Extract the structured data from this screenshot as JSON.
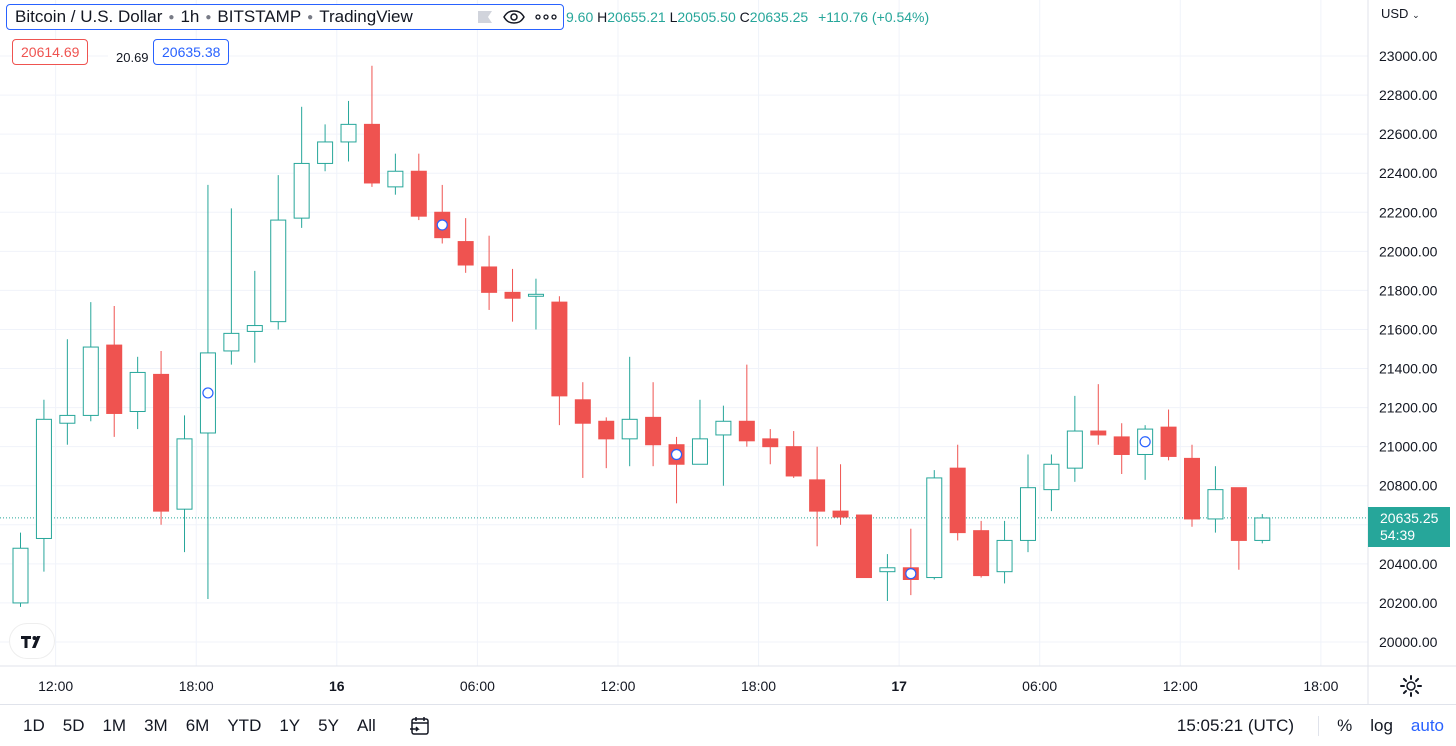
{
  "header": {
    "symbol": "Bitcoin / U.S. Dollar",
    "interval": "1h",
    "exchange": "BITSTAMP",
    "source": "TradingView",
    "ohlc": {
      "open_label": "",
      "open_value": "9.60",
      "high_label": "H",
      "high_value": "20655.21",
      "low_label": "L",
      "low_value": "20505.50",
      "close_label": "C",
      "close_value": "20635.25",
      "change": "+110.76 (+0.54%)"
    },
    "bid": "20614.69",
    "spread": "20.69",
    "ask": "20635.38",
    "currency": "USD"
  },
  "last_price": {
    "value": "20635.25",
    "countdown": "54:39"
  },
  "colors": {
    "up": "#26a69a",
    "down": "#ef5350",
    "grid": "#f0f3fa",
    "accent": "#2962ff"
  },
  "toolbar": {
    "ranges": [
      "1D",
      "5D",
      "1M",
      "3M",
      "6M",
      "YTD",
      "1Y",
      "5Y",
      "All"
    ],
    "clock": "15:05:21 (UTC)",
    "percent": "%",
    "log": "log",
    "auto": "auto"
  },
  "icons": [
    "eye-icon",
    "more-icon",
    "goto-date-icon",
    "settings-icon",
    "tradingview-logo"
  ],
  "chart_data": {
    "type": "candlestick",
    "ylim": [
      19925,
      23200
    ],
    "y_ticks": [
      20000,
      20200,
      20400,
      20600,
      20800,
      21000,
      21200,
      21400,
      21600,
      21800,
      22000,
      22200,
      22400,
      22600,
      22800,
      23000
    ],
    "y_tick_labels": [
      "20000.00",
      "20200.00",
      "20400.00",
      "20600.00",
      "20800.00",
      "21000.00",
      "21200.00",
      "21400.00",
      "21600.00",
      "21800.00",
      "22000.00",
      "22200.00",
      "22400.00",
      "22600.00",
      "22800.00",
      "23000.00"
    ],
    "x_tick_labels": [
      "12:00",
      "18:00",
      "16",
      "06:00",
      "12:00",
      "18:00",
      "17",
      "06:00",
      "12:00",
      "18:00"
    ],
    "x_tick_positions": [
      1.5,
      7.5,
      13.5,
      19.5,
      25.5,
      31.5,
      37.5,
      43.5,
      49.5,
      55.5
    ],
    "last_price": 20635.25,
    "candles": [
      {
        "o": 20200,
        "h": 20560,
        "l": 20180,
        "c": 20480
      },
      {
        "o": 20530,
        "h": 21240,
        "l": 20360,
        "c": 21140
      },
      {
        "o": 21120,
        "h": 21550,
        "l": 21010,
        "c": 21160
      },
      {
        "o": 21160,
        "h": 21740,
        "l": 21130,
        "c": 21510
      },
      {
        "o": 21520,
        "h": 21720,
        "l": 21050,
        "c": 21170
      },
      {
        "o": 21180,
        "h": 21460,
        "l": 21090,
        "c": 21380
      },
      {
        "o": 21370,
        "h": 21490,
        "l": 20600,
        "c": 20670
      },
      {
        "o": 20680,
        "h": 21160,
        "l": 20460,
        "c": 21040
      },
      {
        "o": 21070,
        "h": 22340,
        "l": 20220,
        "c": 21480
      },
      {
        "o": 21490,
        "h": 22220,
        "l": 21420,
        "c": 21580
      },
      {
        "o": 21590,
        "h": 21900,
        "l": 21430,
        "c": 21620
      },
      {
        "o": 21640,
        "h": 22390,
        "l": 21600,
        "c": 22160
      },
      {
        "o": 22170,
        "h": 22740,
        "l": 22120,
        "c": 22450
      },
      {
        "o": 22450,
        "h": 22650,
        "l": 22410,
        "c": 22560
      },
      {
        "o": 22560,
        "h": 22770,
        "l": 22460,
        "c": 22650
      },
      {
        "o": 22650,
        "h": 22950,
        "l": 22330,
        "c": 22350
      },
      {
        "o": 22330,
        "h": 22500,
        "l": 22290,
        "c": 22410
      },
      {
        "o": 22410,
        "h": 22500,
        "l": 22160,
        "c": 22180
      },
      {
        "o": 22200,
        "h": 22340,
        "l": 22040,
        "c": 22070
      },
      {
        "o": 22050,
        "h": 22170,
        "l": 21890,
        "c": 21930
      },
      {
        "o": 21920,
        "h": 22080,
        "l": 21700,
        "c": 21790
      },
      {
        "o": 21790,
        "h": 21910,
        "l": 21640,
        "c": 21760
      },
      {
        "o": 21770,
        "h": 21860,
        "l": 21600,
        "c": 21780
      },
      {
        "o": 21740,
        "h": 21770,
        "l": 21110,
        "c": 21260
      },
      {
        "o": 21240,
        "h": 21330,
        "l": 20840,
        "c": 21120
      },
      {
        "o": 21130,
        "h": 21150,
        "l": 20890,
        "c": 21040
      },
      {
        "o": 21040,
        "h": 21460,
        "l": 20900,
        "c": 21140
      },
      {
        "o": 21150,
        "h": 21330,
        "l": 20900,
        "c": 21010
      },
      {
        "o": 21010,
        "h": 21050,
        "l": 20710,
        "c": 20910
      },
      {
        "o": 20910,
        "h": 21240,
        "l": 20910,
        "c": 21040
      },
      {
        "o": 21060,
        "h": 21210,
        "l": 20800,
        "c": 21130
      },
      {
        "o": 21130,
        "h": 21420,
        "l": 21000,
        "c": 21030
      },
      {
        "o": 21040,
        "h": 21090,
        "l": 20910,
        "c": 21000
      },
      {
        "o": 21000,
        "h": 21080,
        "l": 20840,
        "c": 20850
      },
      {
        "o": 20830,
        "h": 21000,
        "l": 20490,
        "c": 20670
      },
      {
        "o": 20670,
        "h": 20910,
        "l": 20600,
        "c": 20640
      },
      {
        "o": 20650,
        "h": 20650,
        "l": 20330,
        "c": 20330
      },
      {
        "o": 20360,
        "h": 20450,
        "l": 20210,
        "c": 20380
      },
      {
        "o": 20380,
        "h": 20580,
        "l": 20240,
        "c": 20320
      },
      {
        "o": 20330,
        "h": 20880,
        "l": 20320,
        "c": 20840
      },
      {
        "o": 20890,
        "h": 21010,
        "l": 20520,
        "c": 20560
      },
      {
        "o": 20570,
        "h": 20620,
        "l": 20330,
        "c": 20340
      },
      {
        "o": 20360,
        "h": 20620,
        "l": 20300,
        "c": 20520
      },
      {
        "o": 20520,
        "h": 20960,
        "l": 20460,
        "c": 20790
      },
      {
        "o": 20780,
        "h": 20960,
        "l": 20670,
        "c": 20910
      },
      {
        "o": 20890,
        "h": 21260,
        "l": 20820,
        "c": 21080
      },
      {
        "o": 21080,
        "h": 21320,
        "l": 21010,
        "c": 21060
      },
      {
        "o": 21050,
        "h": 21120,
        "l": 20860,
        "c": 20960
      },
      {
        "o": 20960,
        "h": 21110,
        "l": 20830,
        "c": 21090
      },
      {
        "o": 21100,
        "h": 21190,
        "l": 20930,
        "c": 20950
      },
      {
        "o": 20940,
        "h": 21010,
        "l": 20590,
        "c": 20630
      },
      {
        "o": 20630,
        "h": 20900,
        "l": 20560,
        "c": 20780
      },
      {
        "o": 20790,
        "h": 20790,
        "l": 20370,
        "c": 20520
      },
      {
        "o": 20520,
        "h": 20655,
        "l": 20505,
        "c": 20635
      }
    ],
    "event_markers": [
      8,
      18,
      28,
      38,
      48
    ]
  }
}
